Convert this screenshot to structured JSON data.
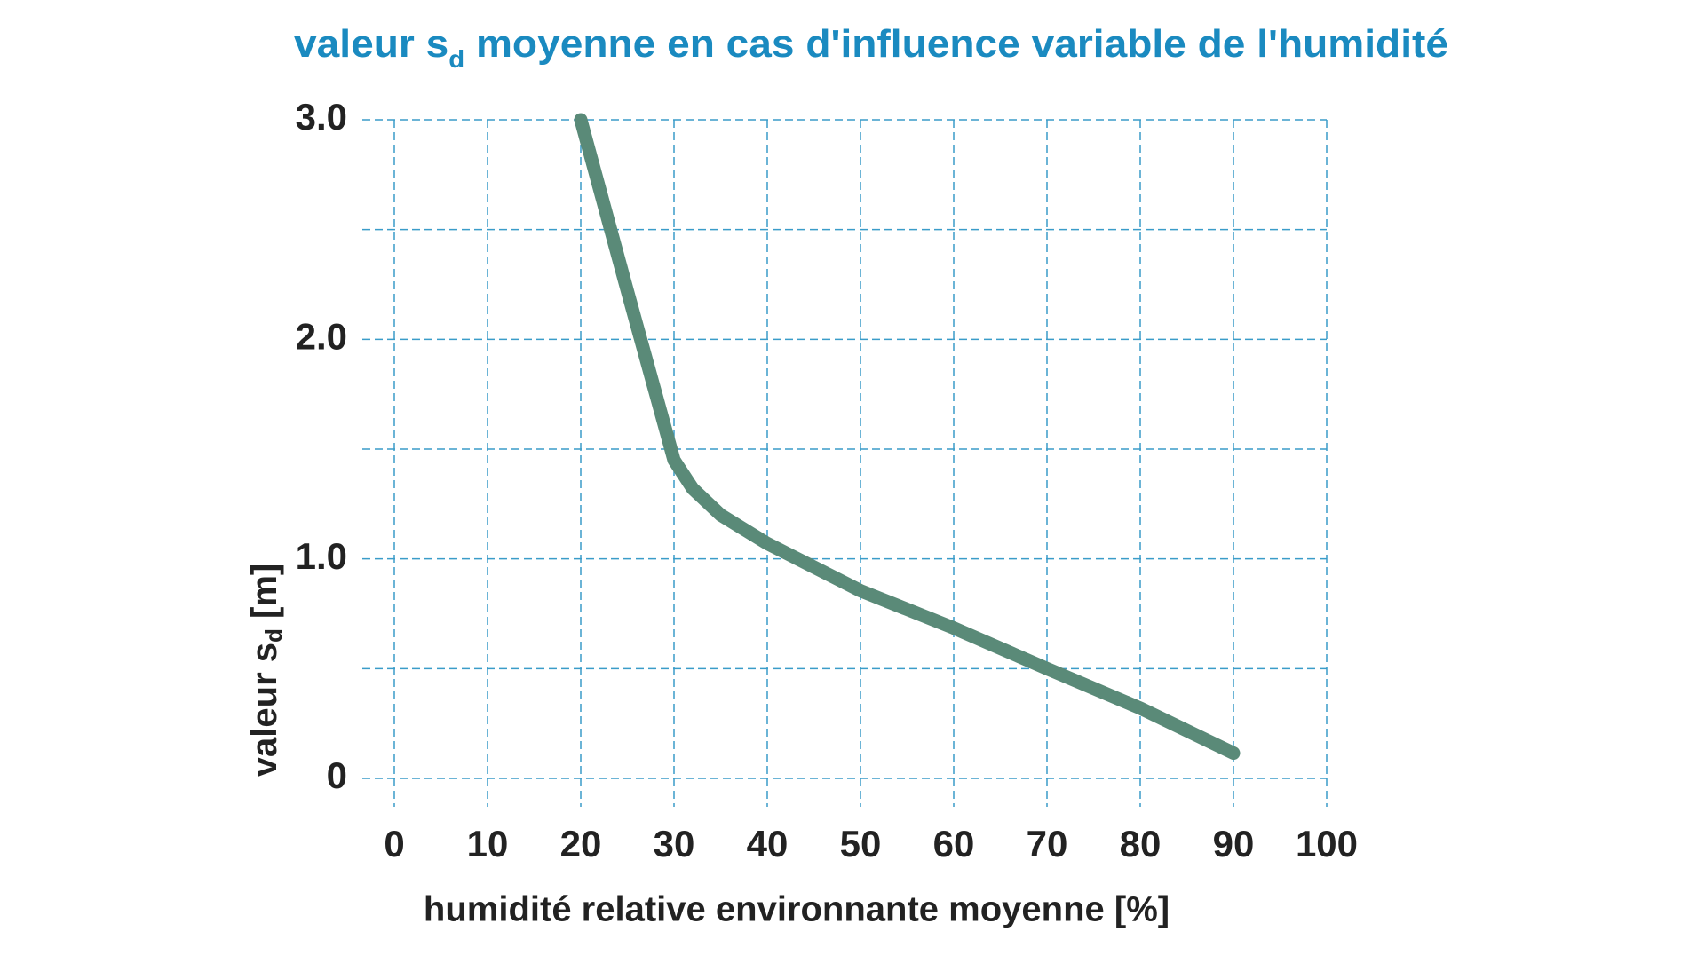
{
  "chart_data": {
    "type": "line",
    "title": {
      "text": "valeur s",
      "sub": "d",
      "rest": " moyenne en cas d'influence variable de l'humidité"
    },
    "x_label": "humidité relative environnante moyenne [%]",
    "y_label": {
      "text": "valeur s",
      "sub": "d",
      "rest": " [m]"
    },
    "x": [
      20,
      25,
      30,
      32,
      35,
      40,
      50,
      60,
      70,
      80,
      90
    ],
    "series": [
      {
        "color": "#5a8a78",
        "values": [
          3.0,
          2.22,
          1.45,
          1.32,
          1.2,
          1.07,
          0.855,
          0.685,
          0.5,
          0.32,
          0.115
        ]
      }
    ],
    "xlim": [
      0,
      100
    ],
    "xticks": [
      0,
      10,
      20,
      30,
      40,
      50,
      60,
      70,
      80,
      90,
      100
    ],
    "ylim": [
      0,
      3
    ],
    "yticks": [
      0,
      {
        "value": 1,
        "label": "1.0"
      },
      {
        "value": 2,
        "label": "2.0"
      },
      {
        "value": 3,
        "label": "3.0"
      }
    ],
    "yminor": [
      0.5,
      1.5,
      2.5
    ],
    "grid": true,
    "grid_color": "#3a9cc9",
    "title_color": "#1a8ac0"
  }
}
